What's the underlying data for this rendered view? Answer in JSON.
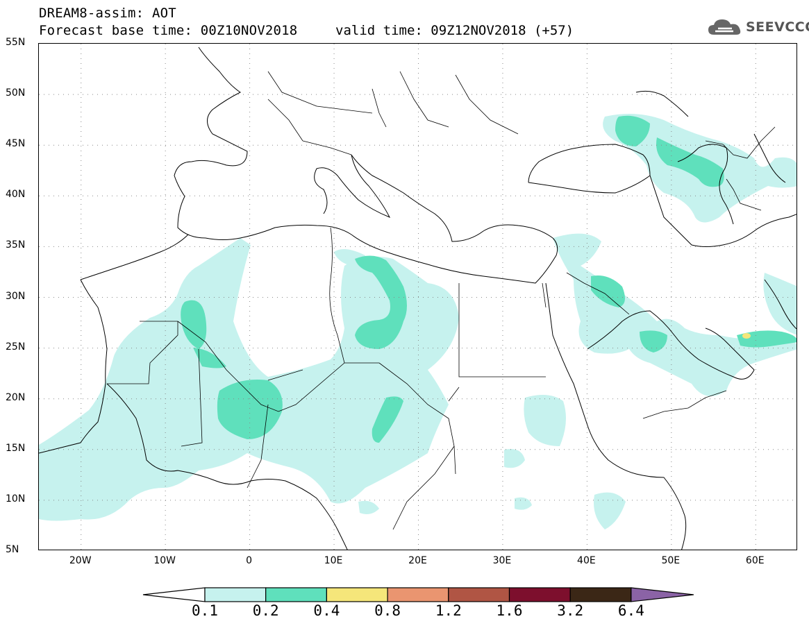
{
  "title": {
    "line1": "DREAM8-assim: AOT",
    "line2": "Forecast base time: 00Z10NOV2018",
    "valid": "valid time: 09Z12NOV2018 (+57)"
  },
  "logo": {
    "text": "SEEVCCC",
    "icon": "cloud-icon"
  },
  "map": {
    "lat_range": [
      5,
      55
    ],
    "lon_range": [
      -25,
      65
    ],
    "lat_ticks": [
      "55N",
      "50N",
      "45N",
      "40N",
      "35N",
      "30N",
      "25N",
      "20N",
      "15N",
      "10N",
      "5N"
    ],
    "lon_ticks": [
      "20W",
      "10W",
      "0",
      "10E",
      "20E",
      "30E",
      "40E",
      "50E",
      "60E"
    ],
    "gridlines": "dotted"
  },
  "colorbar": {
    "labels": [
      "0.1",
      "0.2",
      "0.4",
      "0.8",
      "1.2",
      "1.6",
      "3.2",
      "6.4"
    ],
    "colors": [
      "#ffffff",
      "#c6f2ee",
      "#5fe0bc",
      "#f5e67a",
      "#ea9570",
      "#b05544",
      "#7d0f2d",
      "#3b2716",
      "#8b63a6"
    ]
  }
}
